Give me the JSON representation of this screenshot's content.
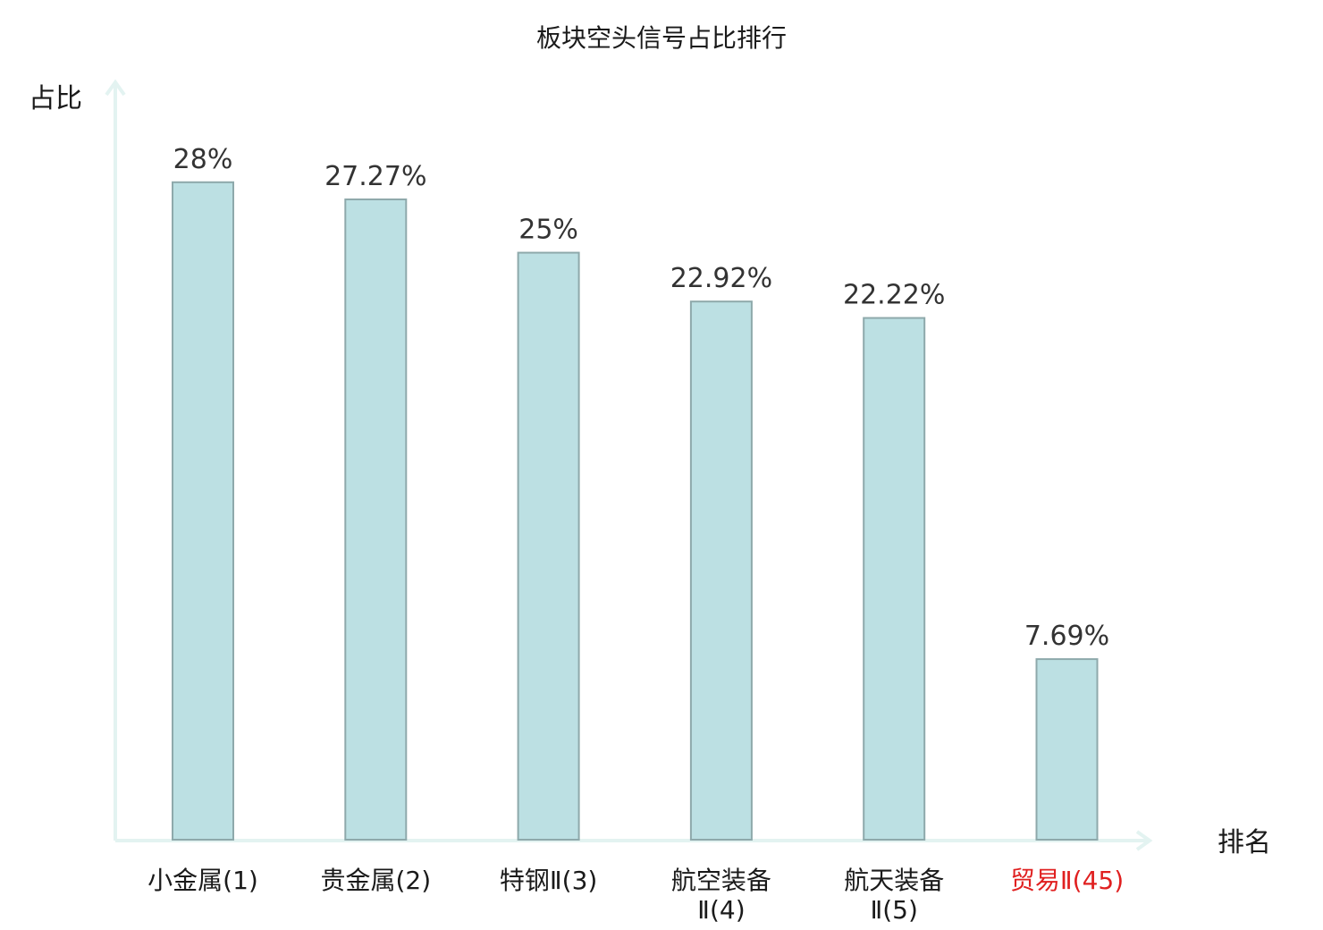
{
  "chart_data": {
    "type": "bar",
    "title": "板块空头信号占比排行",
    "ylabel": "占比",
    "xlabel": "排名",
    "ylim": [
      0,
      30
    ],
    "grid": false,
    "categories": [
      {
        "lines": [
          "小金属(1)"
        ],
        "highlight": false
      },
      {
        "lines": [
          "贵金属(2)"
        ],
        "highlight": false
      },
      {
        "lines": [
          "特钢Ⅱ(3)"
        ],
        "highlight": false
      },
      {
        "lines": [
          "航空装备",
          "Ⅱ(4)"
        ],
        "highlight": false
      },
      {
        "lines": [
          "航天装备",
          "Ⅱ(5)"
        ],
        "highlight": false
      },
      {
        "lines": [
          "贸易Ⅱ(45)"
        ],
        "highlight": true
      }
    ],
    "values": [
      28,
      27.27,
      25,
      22.92,
      22.22,
      7.69
    ],
    "value_labels": [
      "28%",
      "27.27%",
      "25%",
      "22.92%",
      "22.22%",
      "7.69%"
    ],
    "colors": {
      "bar_fill": "#bce0e3",
      "bar_stroke": "#8ea9ab",
      "axis": "#e3f3f1",
      "label": "#1a1a1a",
      "highlight": "#e02020"
    }
  }
}
